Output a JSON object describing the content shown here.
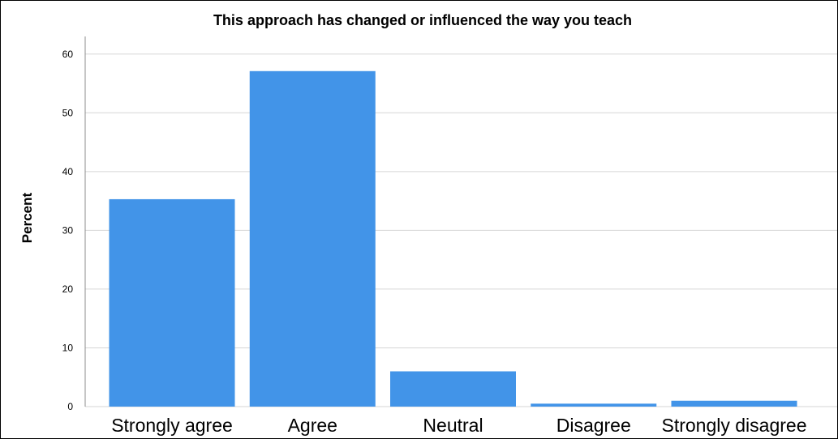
{
  "chart_data": {
    "type": "bar",
    "title": "This approach has changed or influenced the way you teach",
    "ylabel": "Percent",
    "xlabel": "",
    "categories": [
      "Strongly agree",
      "Agree",
      "Neutral",
      "Disagree",
      "Strongly disagree"
    ],
    "values": [
      35.3,
      57.1,
      6.0,
      0.5,
      1.0
    ],
    "ylim": [
      0,
      63
    ],
    "yticks": [
      0,
      10,
      20,
      30,
      40,
      50,
      60
    ],
    "grid": true,
    "legend": "none",
    "colors": {
      "bar": "#4294e8",
      "grid": "#d6d6d6",
      "axis": "#8c8c8c"
    }
  }
}
